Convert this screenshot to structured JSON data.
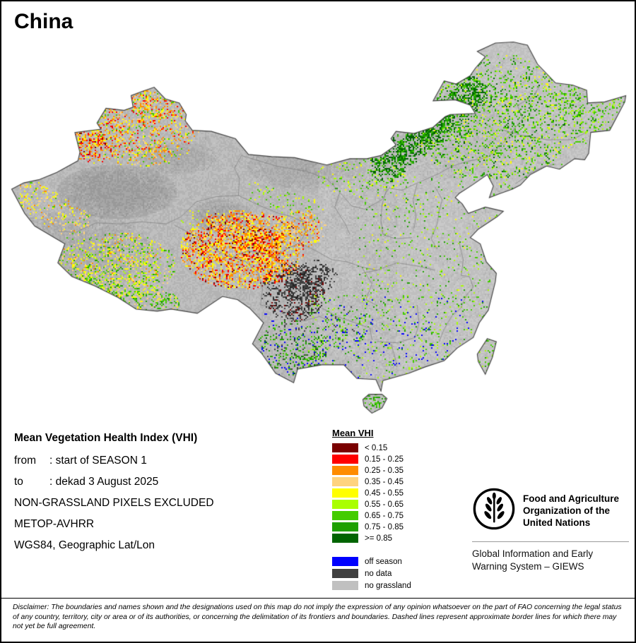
{
  "title": "China",
  "meta": {
    "heading": "Mean Vegetation Health Index (VHI)",
    "rows": [
      {
        "label": "from",
        "value": ": start of SEASON 1"
      },
      {
        "label": "to",
        "value": ": dekad 3 August 2025"
      }
    ],
    "lines": [
      "NON-GRASSLAND PIXELS EXCLUDED",
      "METOP-AVHRR",
      "WGS84, Geographic Lat/Lon"
    ]
  },
  "legend": {
    "title": "Mean VHI",
    "classes": [
      {
        "label": "< 0.15",
        "color": "#7a0000"
      },
      {
        "label": "0.15 - 0.25",
        "color": "#ff0000"
      },
      {
        "label": "0.25 - 0.35",
        "color": "#ff8c00"
      },
      {
        "label": "0.35 - 0.45",
        "color": "#ffd37f"
      },
      {
        "label": "0.45 - 0.55",
        "color": "#ffff00"
      },
      {
        "label": "0.55 - 0.65",
        "color": "#aaff00"
      },
      {
        "label": "0.65 - 0.75",
        "color": "#44cc00"
      },
      {
        "label": "0.75 - 0.85",
        "color": "#1ea000"
      },
      {
        "label": ">= 0.85",
        "color": "#006400"
      }
    ],
    "extra": [
      {
        "label": "off season",
        "color": "#0000ff"
      },
      {
        "label": "no data",
        "color": "#404040"
      },
      {
        "label": "no grassland",
        "color": "#c0c0c0"
      }
    ]
  },
  "fao": {
    "org_lines": [
      "Food and Agriculture",
      "Organization of the",
      "United Nations"
    ],
    "giews_lines": [
      "Global Information and Early",
      "Warning System – GIEWS"
    ]
  },
  "disclaimer": "Disclaimer: The boundaries and names shown and the designations used on this map do not imply the expression of any opinion whatsoever on the part of FAO concerning the legal status of any country, territory, city or area or of its authorities, or concerning the delimitation of its frontiers and boundaries. Dashed lines represent approximate border lines for which there may not yet be full agreement."
}
